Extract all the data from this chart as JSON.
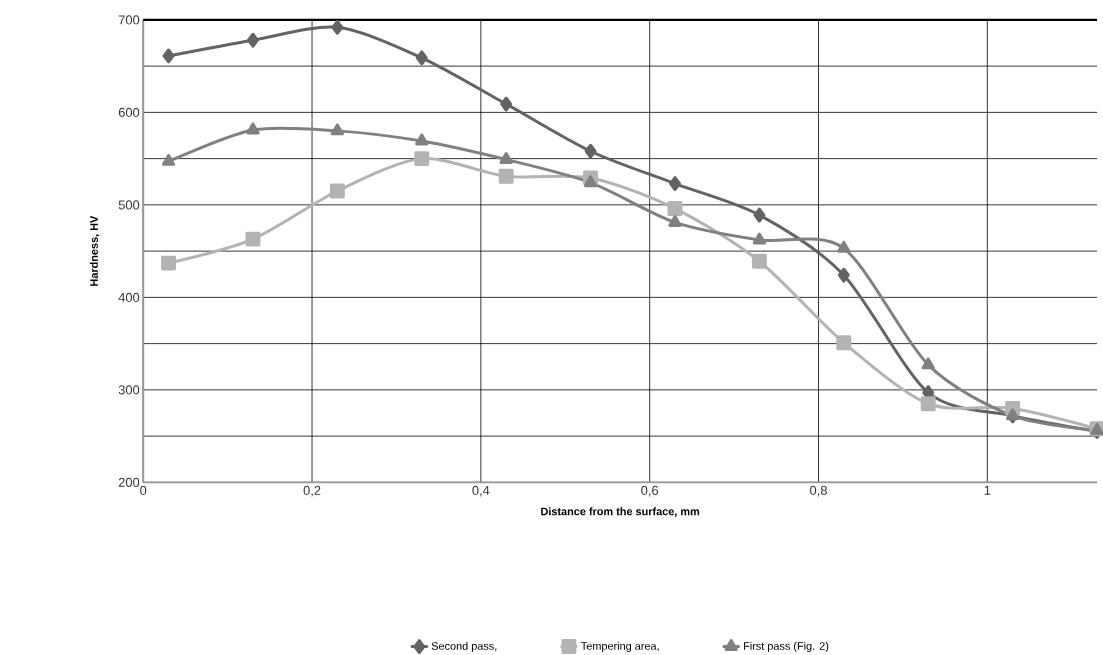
{
  "chart_data": {
    "type": "line",
    "xlabel": "Distance from the surface, mm",
    "ylabel": "Hardness, HV",
    "x": [
      0.03,
      0.13,
      0.23,
      0.33,
      0.43,
      0.53,
      0.63,
      0.73,
      0.83,
      0.93,
      1.03,
      1.13
    ],
    "series": [
      {
        "name": "Second pass,",
        "color": "#636363",
        "marker": "diamond",
        "values": [
          661,
          678,
          692,
          659,
          609,
          558,
          523,
          489,
          424,
          297,
          272,
          255
        ]
      },
      {
        "name": "Tempering area,",
        "color": "#b3b3b3",
        "marker": "square",
        "values": [
          437,
          463,
          515,
          550,
          531,
          529,
          496,
          439,
          351,
          285,
          280,
          258
        ]
      },
      {
        "name": "First pass (Fig. 2)",
        "color": "#808080",
        "marker": "triangle",
        "values": [
          547,
          581,
          580,
          569,
          549,
          524,
          481,
          462,
          453,
          327,
          272,
          256
        ]
      }
    ],
    "xlim": [
      0,
      1.13
    ],
    "ylim": [
      200,
      700
    ],
    "xticks": [
      0,
      {
        "value": 0.2,
        "label": "0,2"
      },
      {
        "value": 0.4,
        "label": "0,4"
      },
      {
        "value": 0.6,
        "label": "0,6"
      },
      {
        "value": 0.8,
        "label": "0,8"
      },
      1
    ],
    "yticks": [
      200,
      {
        "value": 250,
        "label": null
      },
      300,
      {
        "value": 350,
        "label": null
      },
      400,
      {
        "value": 450,
        "label": null
      },
      500,
      {
        "value": 550,
        "label": null
      },
      600,
      {
        "value": 650,
        "label": null
      },
      700
    ],
    "grid": true,
    "legend": "bottom",
    "line_style": "solid"
  }
}
